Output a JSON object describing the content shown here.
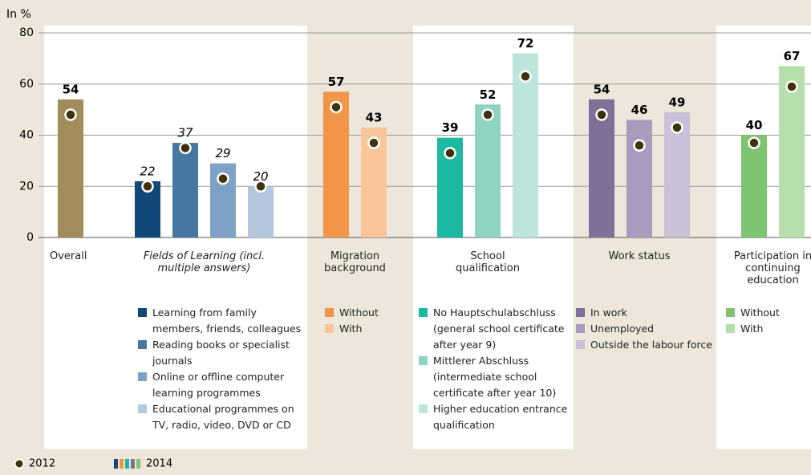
{
  "chart_data": {
    "type": "bar",
    "y_axis_label": "In %",
    "ylim": [
      0,
      80
    ],
    "yticks": [
      0,
      20,
      40,
      60,
      80
    ],
    "grid": true,
    "dot_color": "#3f3208",
    "groups": [
      {
        "label": "Overall",
        "italic": false,
        "bars": [
          {
            "color": "#a18d5b",
            "value": 54,
            "value_2012": 48
          }
        ]
      },
      {
        "label": "Fields of Learning (incl. multiple answers)",
        "italic": true,
        "bars": [
          {
            "name": "Learning from family members, friends, colleagues",
            "color": "#12477a",
            "value": 22,
            "value_2012": 20
          },
          {
            "name": "Reading books or specialist journals",
            "color": "#4677a3",
            "value": 37,
            "value_2012": 35
          },
          {
            "name": "Online or offline computer learning programmes",
            "color": "#7ea2c5",
            "value": 29,
            "value_2012": 23
          },
          {
            "name": "Educational programmes on TV, radio, video, DVD or CD",
            "color": "#b4c7dd",
            "value": 20,
            "value_2012": 20
          }
        ]
      },
      {
        "label": "Migration background",
        "italic": false,
        "bars": [
          {
            "name": "Without",
            "color": "#f29549",
            "value": 57,
            "value_2012": 51
          },
          {
            "name": "With",
            "color": "#f9c59b",
            "value": 43,
            "value_2012": 37
          }
        ]
      },
      {
        "label": "School qualification",
        "italic": false,
        "bars": [
          {
            "name": "No Hauptschulabschluss (general school certificate after year 9)",
            "color": "#1bb9a1",
            "value": 39,
            "value_2012": 33
          },
          {
            "name": "Mittlerer Abschluss (intermediate school certificate after year 10)",
            "color": "#8dd4c3",
            "value": 52,
            "value_2012": 48
          },
          {
            "name": "Higher education entrance qualification",
            "color": "#bde5db",
            "value": 72,
            "value_2012": 63
          }
        ]
      },
      {
        "label": "Work status",
        "italic": false,
        "bars": [
          {
            "name": "In work",
            "color": "#806f98",
            "value": 54,
            "value_2012": 48
          },
          {
            "name": "Unemployed",
            "color": "#a99bbd",
            "value": 46,
            "value_2012": 36
          },
          {
            "name": "Outside the labour force",
            "color": "#cac0d7",
            "value": 49,
            "value_2012": 43
          }
        ]
      },
      {
        "label": "Participation in continuing education",
        "italic": false,
        "bars": [
          {
            "name": "Without",
            "color": "#7dc571",
            "value": 40,
            "value_2012": 37
          },
          {
            "name": "With",
            "color": "#b6dfab",
            "value": 67,
            "value_2012": 59
          }
        ]
      }
    ],
    "legend": {
      "dots": "2012",
      "bars": "2014"
    }
  }
}
